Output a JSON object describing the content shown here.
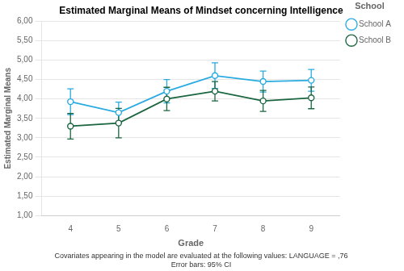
{
  "chart_data": {
    "type": "line",
    "title": "Estimated Marginal Means of Mindset concerning Intelligence",
    "x_label": "Grade",
    "y_label": "Estimated Marginal Means",
    "annotations": [
      "Covariates appearing in the model are evaluated at the following values: LANGUAGE = ,76",
      "Error bars: 95% CI"
    ],
    "legend_title": "School",
    "legend": "right",
    "grid": "y",
    "x": [
      4,
      5,
      6,
      7,
      8,
      9
    ],
    "xlim": [
      3.4,
      9.6
    ],
    "xticks": [
      4,
      5,
      6,
      7,
      8,
      9
    ],
    "ylim": [
      1.0,
      6.0
    ],
    "yticks": [
      {
        "value": 1.0,
        "label": "1,00"
      },
      {
        "value": 1.5,
        "label": "1,50"
      },
      {
        "value": 2.0,
        "label": "2,00"
      },
      {
        "value": 2.5,
        "label": "2,50"
      },
      {
        "value": 3.0,
        "label": "3,00"
      },
      {
        "value": 3.5,
        "label": "3,50"
      },
      {
        "value": 4.0,
        "label": "4,00"
      },
      {
        "value": 4.5,
        "label": "4,50"
      },
      {
        "value": 5.0,
        "label": "5,00"
      },
      {
        "value": 5.5,
        "label": "5,50"
      },
      {
        "value": 6.0,
        "label": "6,00"
      }
    ],
    "series": [
      {
        "name": "School A",
        "color": "#29ABE2",
        "marker": "circle",
        "line_style": "solid",
        "values": [
          3.93,
          3.65,
          4.2,
          4.6,
          4.45,
          4.48
        ],
        "ci_lower": [
          3.6,
          3.38,
          3.9,
          4.27,
          4.18,
          4.2
        ],
        "ci_upper": [
          4.26,
          3.92,
          4.5,
          4.93,
          4.72,
          4.76
        ]
      },
      {
        "name": "School B",
        "color": "#1A6640",
        "marker": "circle",
        "line_style": "solid",
        "values": [
          3.3,
          3.38,
          4.0,
          4.2,
          3.95,
          4.03
        ],
        "ci_lower": [
          2.97,
          3.0,
          3.7,
          3.95,
          3.68,
          3.75
        ],
        "ci_upper": [
          3.63,
          3.76,
          4.3,
          4.45,
          4.22,
          4.31
        ]
      }
    ]
  }
}
